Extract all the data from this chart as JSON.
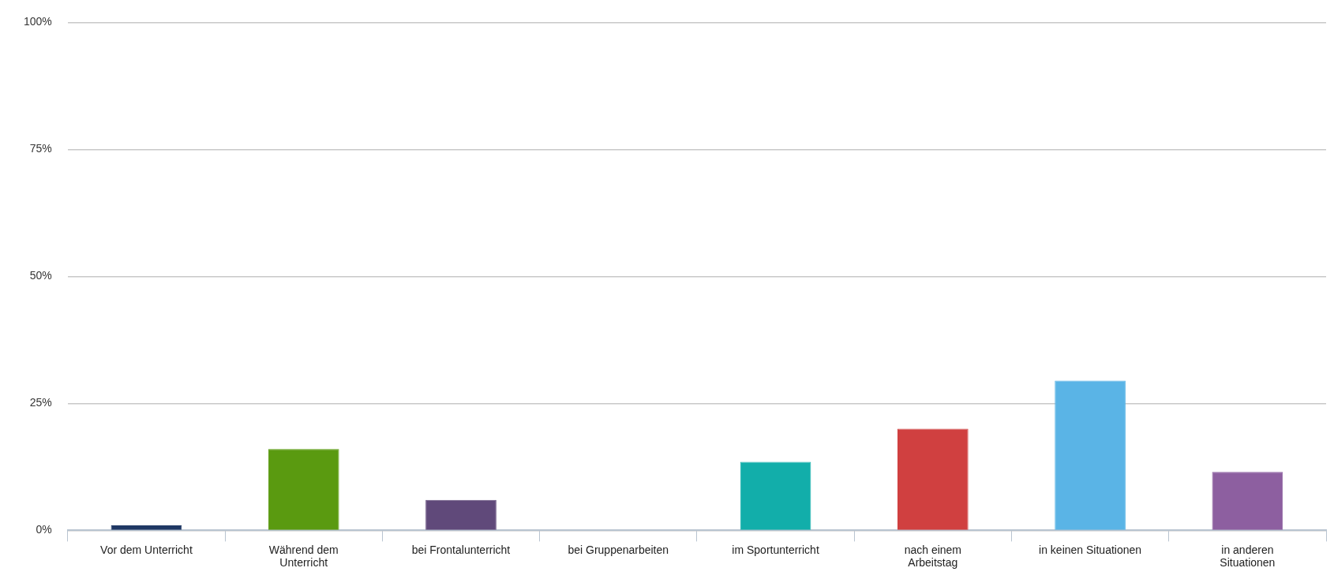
{
  "chart_data": {
    "type": "bar",
    "categories": [
      "Vor dem Unterricht",
      "Während dem Unterricht",
      "bei Frontalunterricht",
      "bei Gruppenarbeiten",
      "im Sportunterricht",
      "nach einem Arbeitstag",
      "in keinen Situationen",
      "in anderen Situationen"
    ],
    "values": [
      1,
      16,
      6,
      0,
      13.5,
      20,
      29.5,
      11.5
    ],
    "colors": [
      "#1f3864",
      "#5a9a10",
      "#60497a",
      "#7a7a7a",
      "#12aeaa",
      "#d04040",
      "#5ab4e6",
      "#8d5fa0"
    ],
    "ylim": [
      0,
      100
    ],
    "yticks": [
      {
        "value": 0,
        "label": "0%"
      },
      {
        "value": 25,
        "label": "25%"
      },
      {
        "value": 50,
        "label": "50%"
      },
      {
        "value": 75,
        "label": "75%"
      },
      {
        "value": 100,
        "label": "100%"
      }
    ],
    "grid": "y",
    "legend": false
  }
}
